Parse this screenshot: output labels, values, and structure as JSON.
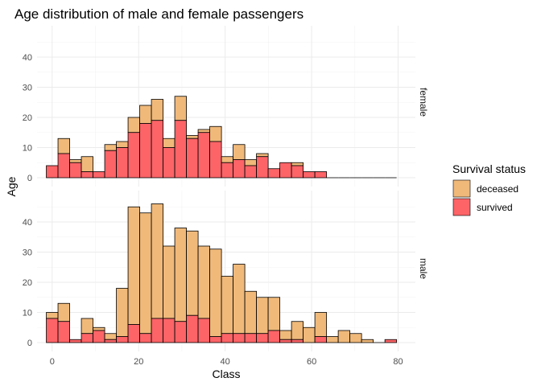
{
  "chart_data": {
    "type": "bar",
    "title": "Age distribution of male and female passengers",
    "xlabel": "Class",
    "ylabel": "Age",
    "xlim": [
      -3.5,
      84
    ],
    "xticks": [
      0,
      20,
      40,
      60,
      80
    ],
    "ylim": [
      0,
      48
    ],
    "yticks": [
      0,
      10,
      20,
      30,
      40
    ],
    "grid": true,
    "bin_width": 2.7,
    "bin_start": -1.35,
    "stacked": true,
    "legend": {
      "title": "Survival status",
      "position": "right",
      "entries": [
        {
          "label": "deceased",
          "color": "#f0b97a"
        },
        {
          "label": "survived",
          "color": "#fc6468"
        }
      ]
    },
    "panels": [
      {
        "strip": "female",
        "survived": [
          4,
          8,
          5,
          2,
          2,
          9,
          10,
          15,
          18,
          19,
          10,
          19,
          13,
          15,
          12,
          5,
          6,
          4,
          7,
          3,
          5,
          4,
          2,
          2,
          0,
          0,
          0,
          0,
          0,
          0
        ],
        "deceased": [
          0,
          5,
          1,
          5,
          0,
          2,
          2,
          5,
          6,
          7,
          3,
          8,
          1,
          1,
          5,
          2,
          5,
          2,
          1,
          0,
          0,
          1,
          0,
          0,
          0,
          0,
          0,
          0,
          0,
          0
        ],
        "totals": [
          4,
          13,
          6,
          7,
          2,
          11,
          12,
          20,
          24,
          26,
          13,
          27,
          14,
          16,
          17,
          7,
          11,
          6,
          8,
          3,
          5,
          5,
          2,
          2,
          0,
          0,
          0,
          0,
          0,
          0
        ]
      },
      {
        "strip": "male",
        "survived": [
          8,
          7,
          1,
          3,
          4,
          1,
          2,
          6,
          3,
          8,
          8,
          7,
          9,
          8,
          2,
          3,
          3,
          3,
          3,
          4,
          1,
          1,
          0,
          2,
          0,
          0,
          0,
          0,
          0,
          1
        ],
        "deceased": [
          2,
          6,
          0,
          5,
          1,
          2,
          16,
          39,
          40,
          38,
          24,
          31,
          28,
          24,
          29,
          19,
          23,
          14,
          12,
          11,
          3,
          6,
          5,
          8,
          2,
          4,
          3,
          1,
          0,
          0
        ],
        "totals": [
          10,
          13,
          1,
          8,
          5,
          3,
          18,
          45,
          43,
          46,
          32,
          38,
          37,
          32,
          31,
          22,
          26,
          17,
          15,
          15,
          4,
          7,
          5,
          10,
          2,
          4,
          3,
          1,
          0,
          1
        ]
      }
    ]
  }
}
